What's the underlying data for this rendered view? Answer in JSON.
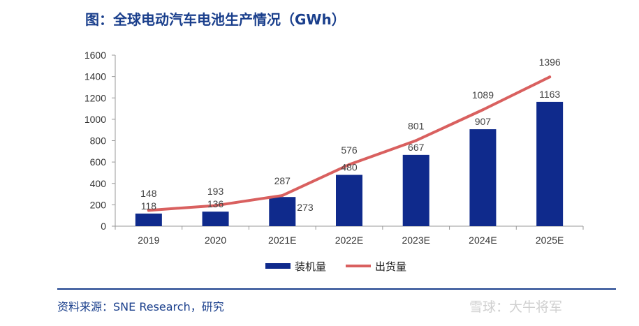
{
  "header": {
    "title": "图：全球电动汽车电池生产情况（GWh）"
  },
  "footer": {
    "source": "资料来源：SNE Research，研究"
  },
  "watermark": {
    "text": "雪球：大牛将军"
  },
  "chart_data": {
    "type": "bar",
    "title": "图：全球电动汽车电池生产情况（GWh）",
    "xlabel": "",
    "ylabel": "",
    "categories": [
      "2019",
      "2020",
      "2021E",
      "2022E",
      "2023E",
      "2024E",
      "2025E"
    ],
    "ylim": [
      0,
      1600
    ],
    "yticks": [
      0,
      200,
      400,
      600,
      800,
      1000,
      1200,
      1400,
      1600
    ],
    "grid": false,
    "legend_position": "bottom",
    "series": [
      {
        "name": "装机量",
        "kind": "bar",
        "color": "#0f2a8c",
        "values": [
          118,
          136,
          273,
          480,
          667,
          907,
          1163
        ]
      },
      {
        "name": "出货量",
        "kind": "line",
        "color": "#d9605f",
        "values": [
          148,
          193,
          287,
          576,
          801,
          1089,
          1396
        ]
      }
    ]
  }
}
